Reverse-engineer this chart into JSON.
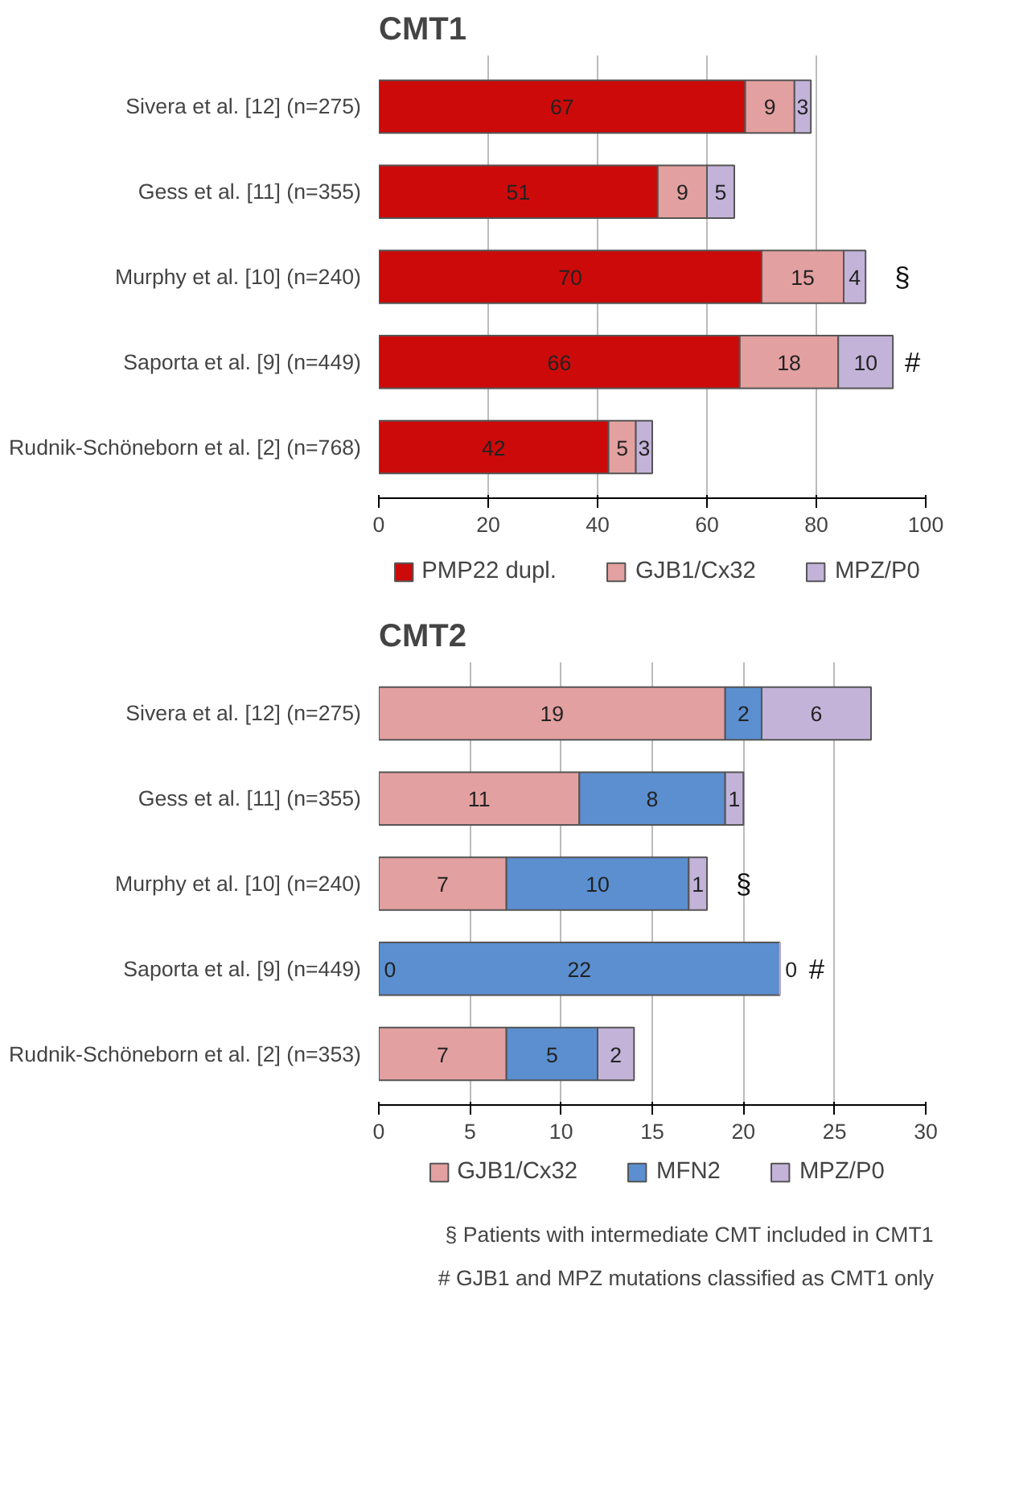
{
  "chart_data": [
    {
      "type": "bar",
      "title": "CMT1",
      "orientation": "horizontal",
      "stacked": true,
      "data_labels": true,
      "grid": "x",
      "legend": "bottom",
      "categories": [
        "Sivera et al. [12] (n=275)",
        "Gess et al. [11] (n=355)",
        "Murphy et al. [10] (n=240)",
        "Saporta et al. [9] (n=449)",
        "Rudnik-Schöneborn et al. [2] (n=768)"
      ],
      "series": [
        {
          "name": "PMP22 dupl.",
          "color": "#cc0a0a",
          "values": [
            67,
            51,
            70,
            66,
            42
          ]
        },
        {
          "name": "GJB1/Cx32",
          "color": "#e3a0a0",
          "values": [
            9,
            9,
            15,
            18,
            5
          ]
        },
        {
          "name": "MPZ/P0",
          "color": "#c3b3d9",
          "values": [
            3,
            5,
            4,
            10,
            3
          ]
        }
      ],
      "xlim": [
        0,
        100
      ],
      "xticks": [
        0,
        20,
        40,
        60,
        80,
        100
      ],
      "annotations": [
        {
          "text": "§",
          "x": 89,
          "y": "Murphy et al. [10] (n=240)"
        },
        {
          "text": "#",
          "x": 94,
          "y": "Saporta et al. [9] (n=449)"
        }
      ]
    },
    {
      "type": "bar",
      "title": "CMT2",
      "orientation": "horizontal",
      "stacked": true,
      "data_labels": true,
      "grid": "x",
      "legend": "bottom",
      "categories": [
        "Sivera et al. [12] (n=275)",
        "Gess et al. [11] (n=355)",
        "Murphy et al. [10] (n=240)",
        "Saporta et al. [9] (n=449)",
        "Rudnik-Schöneborn et al. [2] (n=353)"
      ],
      "series": [
        {
          "name": "GJB1/Cx32",
          "color": "#e3a0a0",
          "values": [
            19,
            11,
            7,
            0,
            7
          ]
        },
        {
          "name": "MFN2",
          "color": "#5b8fd0",
          "values": [
            2,
            8,
            10,
            22,
            5
          ]
        },
        {
          "name": "MPZ/P0",
          "color": "#c3b3d9",
          "values": [
            6,
            1,
            1,
            0,
            2
          ]
        }
      ],
      "xlim": [
        0,
        30
      ],
      "xticks": [
        0,
        5,
        10,
        15,
        20,
        25,
        30
      ],
      "annotations": [
        {
          "text": "§",
          "x": 18,
          "y": "Murphy et al. [10] (n=240)"
        },
        {
          "text": "#",
          "x": 22,
          "y": "Saporta et al. [9] (n=449)"
        },
        "§ Patients with intermediate CMT included in CMT1",
        "# GJB1 and MPZ mutations classified as CMT1 only"
      ]
    }
  ]
}
